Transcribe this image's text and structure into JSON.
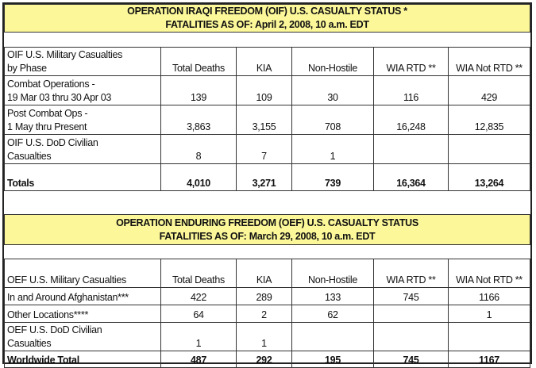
{
  "oif": {
    "title_line1": "OPERATION IRAQI FREEDOM (OIF)  U.S. CASUALTY STATUS *",
    "title_line2": "FATALITIES AS OF: April 2, 2008, 10 a.m. EDT",
    "headers": [
      "OIF U.S. Military Casualties",
      "by Phase",
      "Total Deaths",
      "KIA",
      "Non-Hostile",
      "WIA RTD **",
      "WIA Not RTD **"
    ],
    "rows": [
      {
        "label1": "Combat Operations -",
        "label2": "19 Mar 03 thru 30 Apr 03",
        "values": [
          "139",
          "109",
          "30",
          "116",
          "429"
        ]
      },
      {
        "label1": "Post Combat Ops -",
        "label2": "1 May thru Present",
        "values": [
          "3,863",
          "3,155",
          "708",
          "16,248",
          "12,835"
        ]
      },
      {
        "label1": "OIF U.S. DoD Civilian",
        "label2": "Casualties",
        "values": [
          "8",
          "7",
          "1",
          "",
          ""
        ]
      }
    ],
    "totals": {
      "label": "Totals",
      "values": [
        "4,010",
        "3,271",
        "739",
        "16,364",
        "13,264"
      ]
    }
  },
  "oef": {
    "title_line1": "OPERATION ENDURING FREEDOM (OEF) U.S. CASUALTY STATUS",
    "title_line2": "FATALITIES AS OF: March 29, 2008, 10 a.m. EDT",
    "headers": [
      "OEF U.S. Military Casualties",
      "Total Deaths",
      "KIA",
      "Non-Hostile",
      "WIA RTD **",
      "WIA Not RTD **"
    ],
    "rows": [
      {
        "label1": "In and Around Afghanistan***",
        "label2": "",
        "values": [
          "422",
          "289",
          "133",
          "745",
          "1166"
        ]
      },
      {
        "label1": "Other Locations****",
        "label2": "",
        "values": [
          "64",
          "2",
          "62",
          "",
          "1"
        ]
      },
      {
        "label1": "OEF U.S. DoD Civilian",
        "label2": "Casualties",
        "values": [
          "1",
          "1",
          "",
          "",
          ""
        ]
      }
    ],
    "totals": {
      "label": "Worldwide Total",
      "values": [
        "487",
        "292",
        "195",
        "745",
        "1167"
      ]
    }
  },
  "colors": {
    "title_background": "#fcf89a"
  }
}
